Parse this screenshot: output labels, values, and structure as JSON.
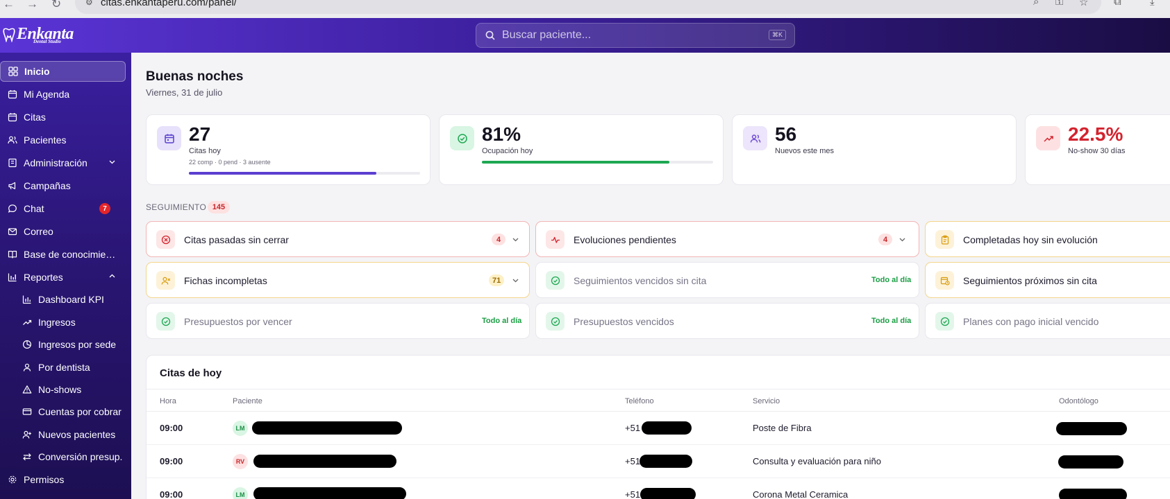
{
  "browser": {
    "url": "citas.enkantaperu.com/panel/"
  },
  "header": {
    "logo_text": "Enkanta",
    "logo_subtitle": "Dental Studio",
    "search_placeholder": "Buscar paciente...",
    "search_shortcut": "⌘K"
  },
  "sidebar": {
    "items": [
      {
        "label": "Inicio",
        "icon": "grid-icon"
      },
      {
        "label": "Mi Agenda",
        "icon": "calendar-icon"
      },
      {
        "label": "Citas",
        "icon": "calendar-icon"
      },
      {
        "label": "Pacientes",
        "icon": "users-icon"
      },
      {
        "label": "Administración",
        "icon": "building-icon"
      },
      {
        "label": "Campañas",
        "icon": "megaphone-icon"
      },
      {
        "label": "Chat",
        "icon": "chat-icon",
        "badge": "7"
      },
      {
        "label": "Correo",
        "icon": "mail-icon"
      },
      {
        "label": "Base de conocimient…",
        "icon": "book-icon"
      },
      {
        "label": "Reportes",
        "icon": "bar-chart-icon"
      },
      {
        "label": "Dashboard KPI",
        "icon": "bar-chart-icon"
      },
      {
        "label": "Ingresos",
        "icon": "trend-up-icon"
      },
      {
        "label": "Ingresos por sede",
        "icon": "pie-chart-icon"
      },
      {
        "label": "Por dentista",
        "icon": "user-icon"
      },
      {
        "label": "No-shows",
        "icon": "warning-icon"
      },
      {
        "label": "Cuentas por cobrar",
        "icon": "card-icon"
      },
      {
        "label": "Nuevos pacientes",
        "icon": "user-plus-icon"
      },
      {
        "label": "Conversión presup.",
        "icon": "swap-icon"
      },
      {
        "label": "Permisos",
        "icon": "gear-icon"
      }
    ]
  },
  "main": {
    "greeting": "Buenas noches",
    "date": "Viernes, 31 de julio",
    "kpis": [
      {
        "value": "27",
        "label": "Citas hoy",
        "sub": "22 comp · 0 pend · 3 ausente",
        "progress": 0.81,
        "color": "#5b3fd0"
      },
      {
        "value": "81%",
        "label": "Ocupación hoy",
        "progress": 0.81,
        "color": "#1ea852"
      },
      {
        "value": "56",
        "label": "Nuevos este mes"
      },
      {
        "value": "22.5%",
        "label": "No-show 30 días",
        "color": "#d3232e"
      }
    ],
    "seguimiento": {
      "title": "SEGUIMIENTO",
      "count": "145",
      "items": [
        {
          "label": "Citas pasadas sin cerrar",
          "count": "4"
        },
        {
          "label": "Evoluciones pendientes",
          "count": "4"
        },
        {
          "label": "Completadas hoy sin evolución"
        },
        {
          "label": "Fichas incompletas",
          "count": "71"
        },
        {
          "label": "Seguimientos vencidos sin cita",
          "status": "Todo al día"
        },
        {
          "label": "Seguimientos próximos sin cita"
        },
        {
          "label": "Presupuestos por vencer",
          "status": "Todo al día"
        },
        {
          "label": "Presupuestos vencidos",
          "status": "Todo al día"
        },
        {
          "label": "Planes con pago inicial vencido"
        }
      ]
    },
    "citas_hoy": {
      "title": "Citas de hoy",
      "columns": [
        "Hora",
        "Paciente",
        "Teléfono",
        "Servicio",
        "Odontólogo"
      ],
      "rows": [
        {
          "hora": "09:00",
          "initials": "LM",
          "phone_prefix": "+51",
          "servicio": "Poste de Fibra"
        },
        {
          "hora": "09:00",
          "initials": "RV",
          "phone_prefix": "+51",
          "servicio": "Consulta y evaluación para niño"
        },
        {
          "hora": "09:00",
          "initials": "LM",
          "phone_prefix": "+51",
          "servicio": "Corona Metal Ceramica"
        }
      ]
    }
  }
}
